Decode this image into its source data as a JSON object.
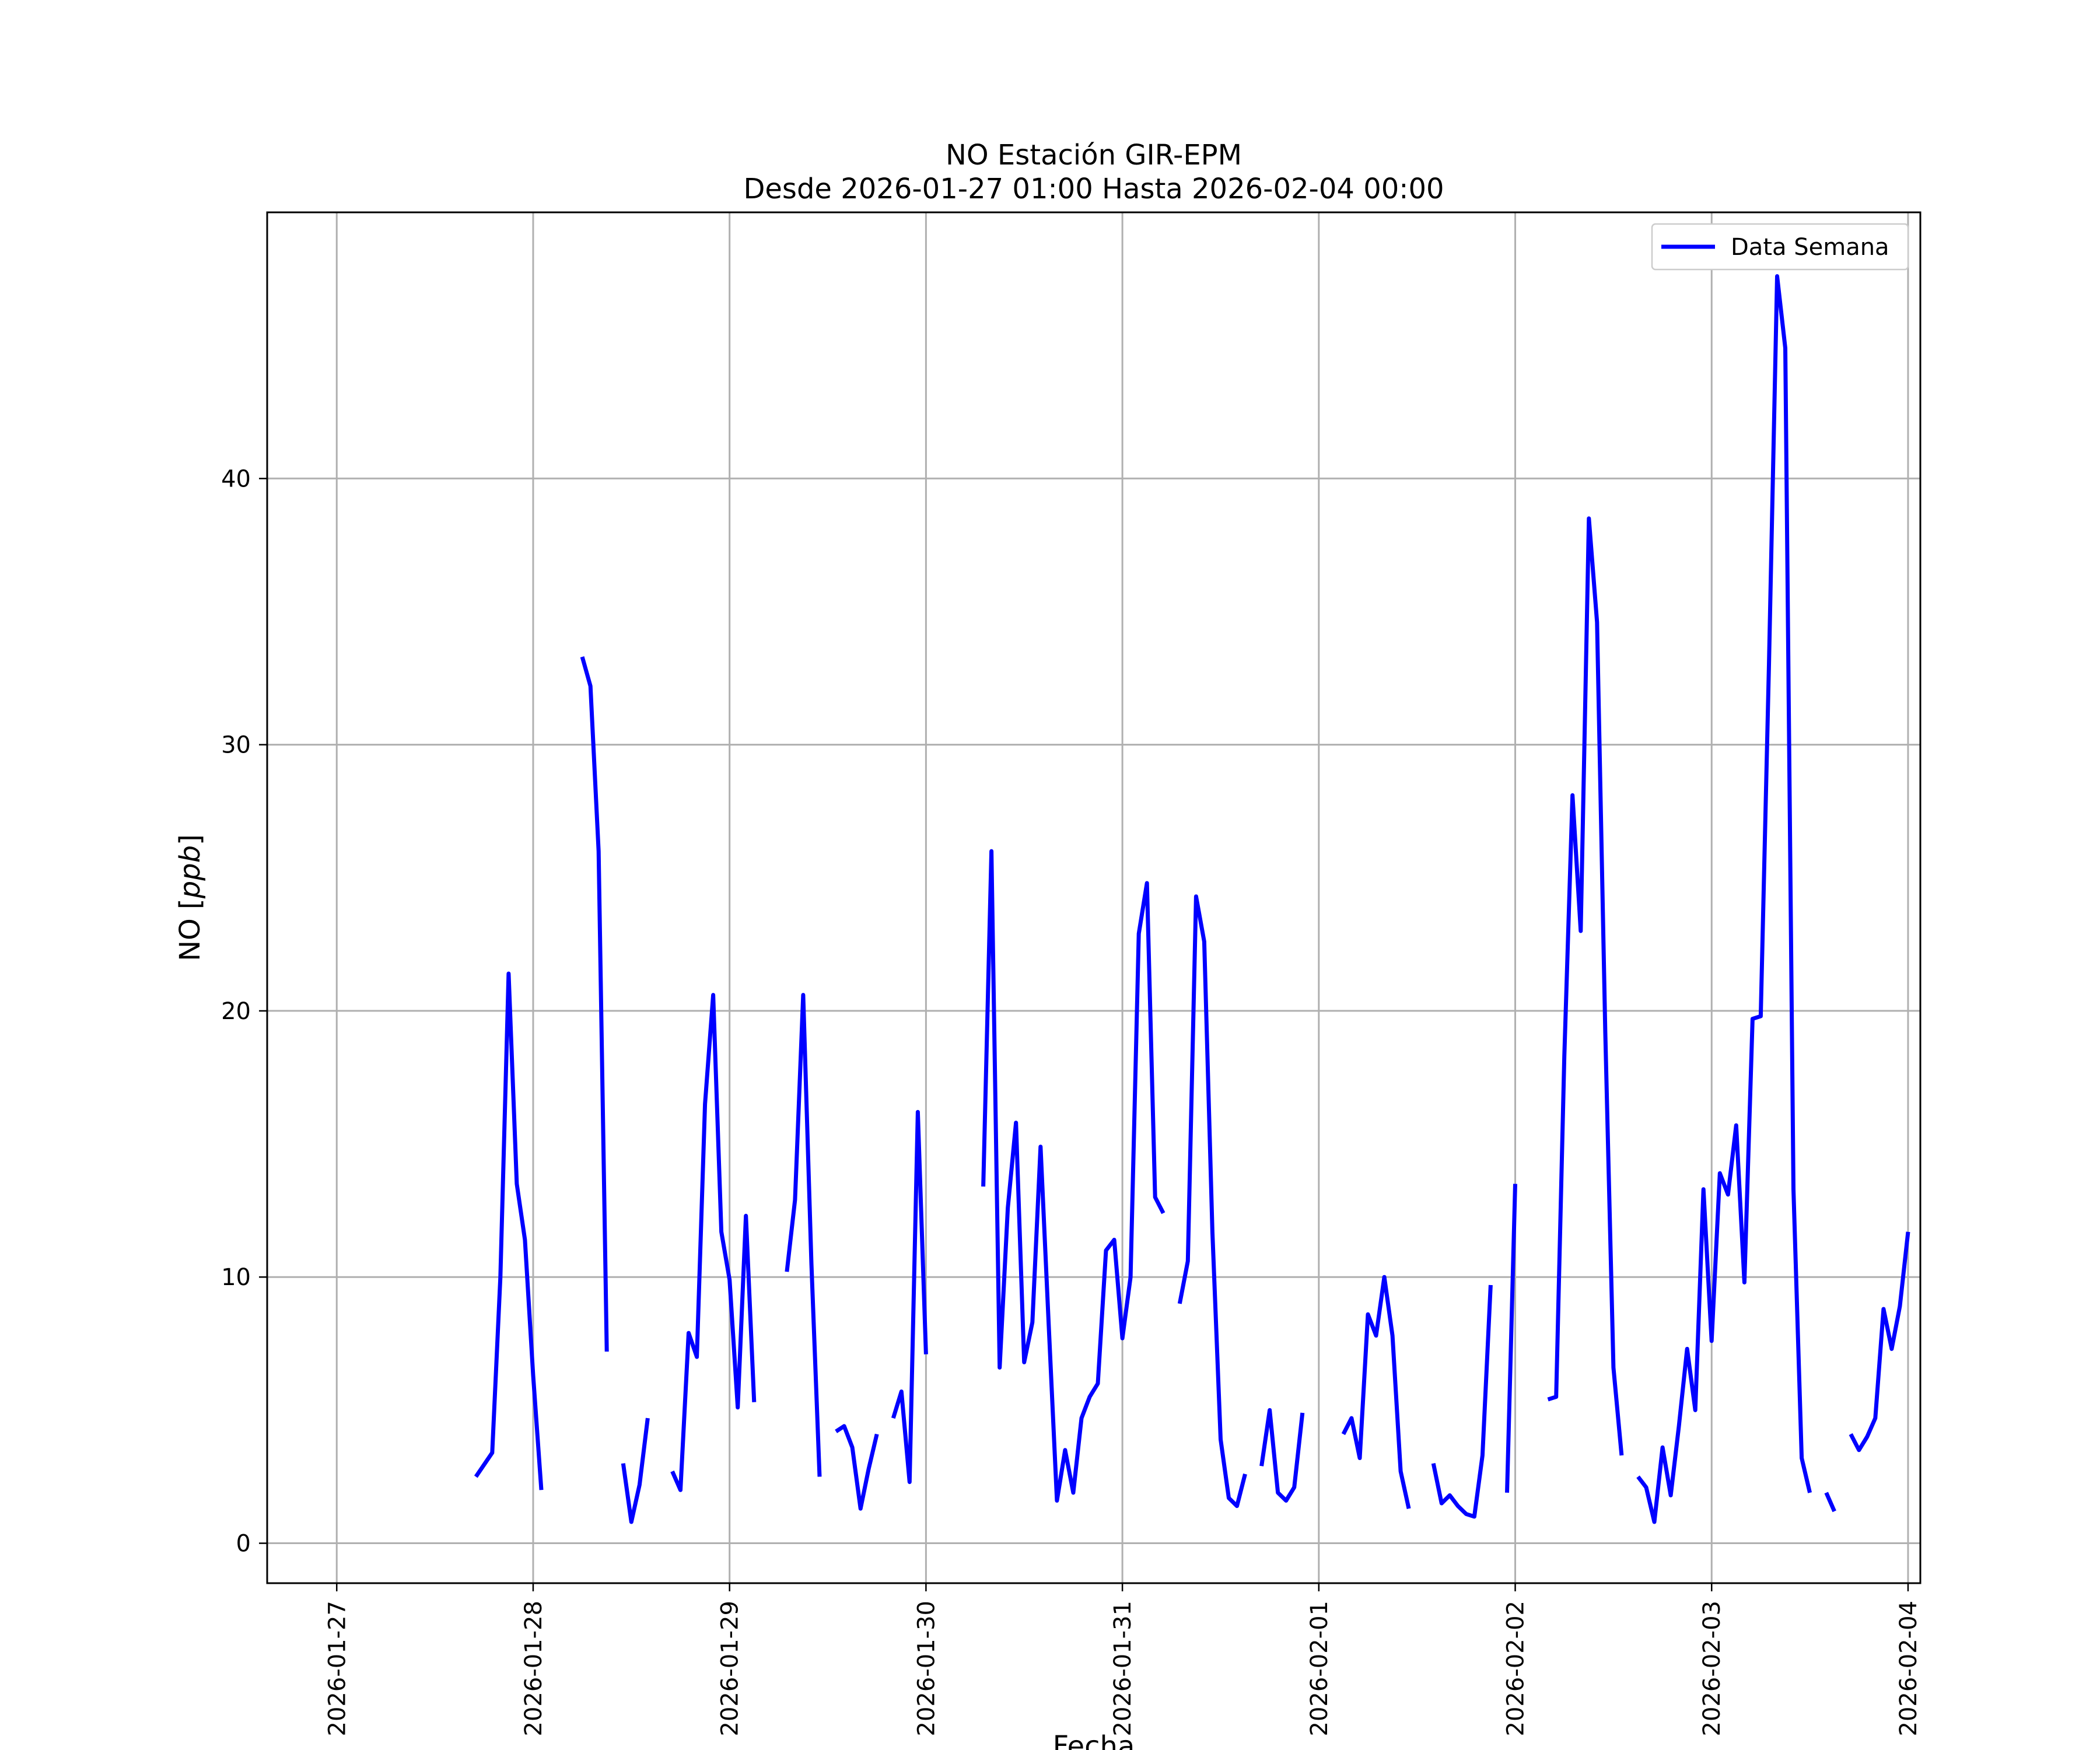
{
  "chart_data": {
    "type": "line",
    "title": "NO Estación GIR-EPM",
    "subtitle": "Desde 2026-01-27 01:00 Hasta 2026-02-04 00:00",
    "xlabel": "Fecha",
    "ylabel": "NO [ppb]",
    "ylabel_parts": {
      "prefix": "NO [",
      "unit": "ppb",
      "suffix": "]"
    },
    "x_ticks": [
      "2026-01-27",
      "2026-01-28",
      "2026-01-29",
      "2026-01-30",
      "2026-01-31",
      "2026-02-01",
      "2026-02-02",
      "2026-02-03",
      "2026-02-04"
    ],
    "y_ticks": [
      0,
      10,
      20,
      30,
      40
    ],
    "xlim": [
      "2026-01-26 15:30",
      "2026-02-04 01:30"
    ],
    "ylim": [
      -1.5,
      50
    ],
    "grid": true,
    "legend_position": "top-right",
    "color": "#0000ff",
    "series": [
      {
        "name": "Data Semana",
        "segments": [
          [
            [
              "2026-01-27 17:00",
              2.5
            ],
            [
              "2026-01-27 19:00",
              3.4
            ],
            [
              "2026-01-27 20:00",
              10.0
            ],
            [
              "2026-01-27 21:00",
              21.4
            ],
            [
              "2026-01-27 22:00",
              13.5
            ],
            [
              "2026-01-27 23:00",
              11.4
            ],
            [
              "2026-01-28 00:00",
              6.3
            ],
            [
              "2026-01-28 01:00",
              2.0
            ]
          ],
          [
            [
              "2026-01-28 06:00",
              33.3
            ],
            [
              "2026-01-28 07:00",
              32.2
            ],
            [
              "2026-01-28 08:00",
              26.0
            ],
            [
              "2026-01-28 09:00",
              7.2
            ]
          ],
          [
            [
              "2026-01-28 11:00",
              3.0
            ],
            [
              "2026-01-28 12:00",
              0.8
            ],
            [
              "2026-01-28 13:00",
              2.2
            ],
            [
              "2026-01-28 14:00",
              4.7
            ]
          ],
          [
            [
              "2026-01-28 17:00",
              2.7
            ],
            [
              "2026-01-28 18:00",
              2.0
            ],
            [
              "2026-01-28 19:00",
              7.9
            ],
            [
              "2026-01-28 20:00",
              7.0
            ],
            [
              "2026-01-28 21:00",
              16.5
            ],
            [
              "2026-01-28 22:00",
              20.6
            ],
            [
              "2026-01-28 23:00",
              11.7
            ],
            [
              "2026-01-29 00:00",
              9.9
            ],
            [
              "2026-01-29 01:00",
              5.1
            ],
            [
              "2026-01-29 02:00",
              12.3
            ],
            [
              "2026-01-29 03:00",
              5.3
            ]
          ],
          [
            [
              "2026-01-29 07:00",
              10.2
            ],
            [
              "2026-01-29 08:00",
              12.9
            ],
            [
              "2026-01-29 09:00",
              20.6
            ],
            [
              "2026-01-29 10:00",
              10.5
            ],
            [
              "2026-01-29 11:00",
              2.5
            ]
          ],
          [
            [
              "2026-01-29 13:00",
              4.2
            ],
            [
              "2026-01-29 14:00",
              4.4
            ],
            [
              "2026-01-29 15:00",
              3.6
            ],
            [
              "2026-01-29 16:00",
              1.3
            ],
            [
              "2026-01-29 17:00",
              2.8
            ],
            [
              "2026-01-29 18:00",
              4.1
            ]
          ],
          [
            [
              "2026-01-29 20:00",
              4.7
            ],
            [
              "2026-01-29 21:00",
              5.7
            ],
            [
              "2026-01-29 22:00",
              2.3
            ],
            [
              "2026-01-29 23:00",
              16.2
            ],
            [
              "2026-01-30 00:00",
              7.1
            ]
          ],
          [
            [
              "2026-01-30 07:00",
              13.4
            ],
            [
              "2026-01-30 08:00",
              26.0
            ],
            [
              "2026-01-30 09:00",
              6.6
            ],
            [
              "2026-01-30 10:00",
              12.6
            ],
            [
              "2026-01-30 11:00",
              15.8
            ],
            [
              "2026-01-30 12:00",
              6.8
            ],
            [
              "2026-01-30 13:00",
              8.3
            ],
            [
              "2026-01-30 14:00",
              14.9
            ],
            [
              "2026-01-30 15:00",
              8.2
            ],
            [
              "2026-01-30 16:00",
              1.6
            ],
            [
              "2026-01-30 17:00",
              3.5
            ],
            [
              "2026-01-30 18:00",
              1.9
            ],
            [
              "2026-01-30 19:00",
              4.7
            ],
            [
              "2026-01-30 20:00",
              5.5
            ],
            [
              "2026-01-30 21:00",
              6.0
            ],
            [
              "2026-01-30 22:00",
              11.0
            ],
            [
              "2026-01-30 23:00",
              11.4
            ],
            [
              "2026-01-31 00:00",
              7.7
            ],
            [
              "2026-01-31 01:00",
              10.0
            ],
            [
              "2026-01-31 02:00",
              22.9
            ],
            [
              "2026-01-31 03:00",
              24.8
            ],
            [
              "2026-01-31 04:00",
              13.0
            ],
            [
              "2026-01-31 05:00",
              12.4
            ]
          ],
          [
            [
              "2026-01-31 07:00",
              9.0
            ],
            [
              "2026-01-31 08:00",
              10.6
            ],
            [
              "2026-01-31 09:00",
              24.3
            ],
            [
              "2026-01-31 10:00",
              22.6
            ],
            [
              "2026-01-31 11:00",
              11.7
            ],
            [
              "2026-01-31 12:00",
              3.9
            ],
            [
              "2026-01-31 13:00",
              1.7
            ],
            [
              "2026-01-31 14:00",
              1.4
            ],
            [
              "2026-01-31 15:00",
              2.6
            ]
          ],
          [
            [
              "2026-01-31 17:00",
              2.9
            ],
            [
              "2026-01-31 18:00",
              5.0
            ],
            [
              "2026-01-31 19:00",
              1.9
            ],
            [
              "2026-01-31 20:00",
              1.6
            ],
            [
              "2026-01-31 21:00",
              2.1
            ],
            [
              "2026-01-31 22:00",
              4.9
            ]
          ],
          [
            [
              "2026-02-01 03:00",
              4.1
            ],
            [
              "2026-02-01 04:00",
              4.7
            ],
            [
              "2026-02-01 05:00",
              3.2
            ],
            [
              "2026-02-01 06:00",
              8.6
            ],
            [
              "2026-02-01 07:00",
              7.8
            ],
            [
              "2026-02-01 08:00",
              10.0
            ],
            [
              "2026-02-01 09:00",
              7.8
            ],
            [
              "2026-02-01 10:00",
              2.7
            ],
            [
              "2026-02-01 11:00",
              1.3
            ]
          ],
          [
            [
              "2026-02-01 14:00",
              3.0
            ],
            [
              "2026-02-01 15:00",
              1.5
            ],
            [
              "2026-02-01 16:00",
              1.8
            ],
            [
              "2026-02-01 17:00",
              1.4
            ],
            [
              "2026-02-01 18:00",
              1.1
            ],
            [
              "2026-02-01 19:00",
              1.0
            ],
            [
              "2026-02-01 20:00",
              3.3
            ],
            [
              "2026-02-01 21:00",
              9.7
            ]
          ],
          [
            [
              "2026-02-01 23:00",
              1.9
            ],
            [
              "2026-02-02 00:00",
              13.5
            ]
          ],
          [
            [
              "2026-02-02 04:00",
              5.4
            ],
            [
              "2026-02-02 05:00",
              5.5
            ],
            [
              "2026-02-02 06:00",
              18.3
            ],
            [
              "2026-02-02 07:00",
              28.1
            ],
            [
              "2026-02-02 08:00",
              23.0
            ],
            [
              "2026-02-02 09:00",
              38.5
            ],
            [
              "2026-02-02 10:00",
              34.6
            ],
            [
              "2026-02-02 11:00",
              19.2
            ],
            [
              "2026-02-02 12:00",
              6.6
            ],
            [
              "2026-02-02 13:00",
              3.3
            ]
          ],
          [
            [
              "2026-02-02 15:00",
              2.5
            ],
            [
              "2026-02-02 16:00",
              2.1
            ],
            [
              "2026-02-02 17:00",
              0.8
            ],
            [
              "2026-02-02 18:00",
              3.6
            ],
            [
              "2026-02-02 19:00",
              1.8
            ],
            [
              "2026-02-02 20:00",
              4.4
            ],
            [
              "2026-02-02 21:00",
              7.3
            ],
            [
              "2026-02-02 22:00",
              5.0
            ],
            [
              "2026-02-02 23:00",
              13.3
            ],
            [
              "2026-02-03 00:00",
              7.6
            ],
            [
              "2026-02-03 01:00",
              13.9
            ],
            [
              "2026-02-03 02:00",
              13.1
            ],
            [
              "2026-02-03 03:00",
              15.7
            ],
            [
              "2026-02-03 04:00",
              9.8
            ],
            [
              "2026-02-03 05:00",
              19.7
            ],
            [
              "2026-02-03 06:00",
              19.8
            ],
            [
              "2026-02-03 07:00",
              33.0
            ],
            [
              "2026-02-03 08:00",
              47.6
            ],
            [
              "2026-02-03 09:00",
              44.9
            ],
            [
              "2026-02-03 10:00",
              13.3
            ],
            [
              "2026-02-03 11:00",
              3.2
            ],
            [
              "2026-02-03 12:00",
              1.9
            ]
          ],
          [
            [
              "2026-02-03 14:00",
              1.9
            ],
            [
              "2026-02-03 15:00",
              1.2
            ]
          ],
          [
            [
              "2026-02-03 17:00",
              4.1
            ],
            [
              "2026-02-03 18:00",
              3.5
            ],
            [
              "2026-02-03 19:00",
              4.0
            ],
            [
              "2026-02-03 20:00",
              4.7
            ],
            [
              "2026-02-03 21:00",
              8.8
            ],
            [
              "2026-02-03 22:00",
              7.3
            ],
            [
              "2026-02-03 23:00",
              8.9
            ],
            [
              "2026-02-04 00:00",
              11.7
            ]
          ]
        ]
      }
    ]
  }
}
